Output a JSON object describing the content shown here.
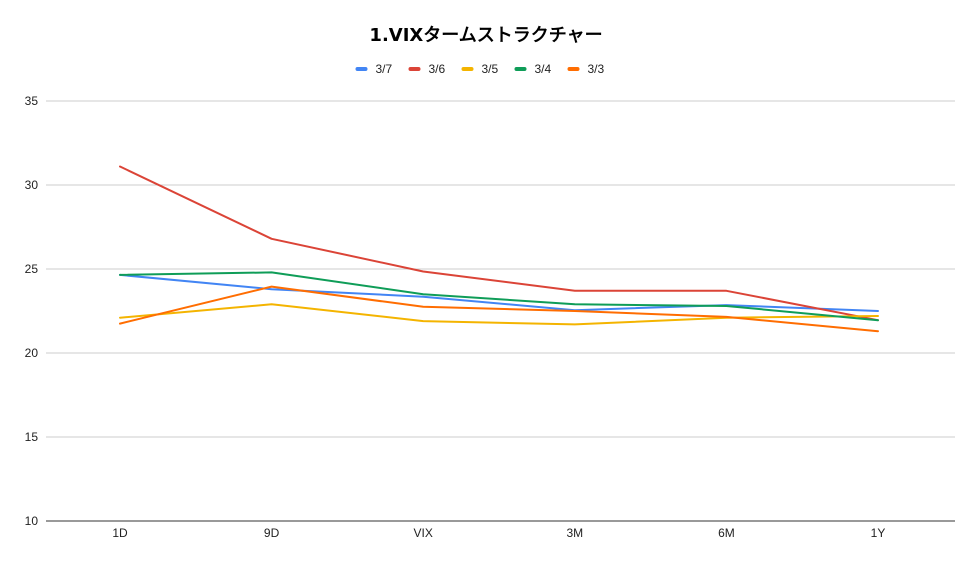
{
  "chart_data": {
    "type": "line",
    "title": "1.VIXタームストラクチャー",
    "xlabel": "",
    "ylabel": "",
    "categories": [
      "1D",
      "9D",
      "VIX",
      "3M",
      "6M",
      "1Y"
    ],
    "ylim": [
      10,
      35
    ],
    "yticks": [
      "10",
      "15",
      "20",
      "25",
      "30",
      "35"
    ],
    "grid": true,
    "legend_position": "top",
    "series": [
      {
        "name": "3/7",
        "color": "#4285f4",
        "values": [
          24.65,
          23.8,
          23.35,
          22.55,
          22.85,
          22.5
        ]
      },
      {
        "name": "3/6",
        "color": "#db4437",
        "values": [
          31.1,
          26.8,
          24.85,
          23.7,
          23.7,
          21.95
        ]
      },
      {
        "name": "3/5",
        "color": "#f4b400",
        "values": [
          22.1,
          22.9,
          21.9,
          21.7,
          22.1,
          22.2
        ]
      },
      {
        "name": "3/4",
        "color": "#0f9d58",
        "values": [
          24.65,
          24.8,
          23.5,
          22.9,
          22.8,
          21.95
        ]
      },
      {
        "name": "3/3",
        "color": "#ff6d01",
        "values": [
          21.75,
          23.95,
          22.75,
          22.5,
          22.15,
          21.3
        ]
      }
    ]
  }
}
